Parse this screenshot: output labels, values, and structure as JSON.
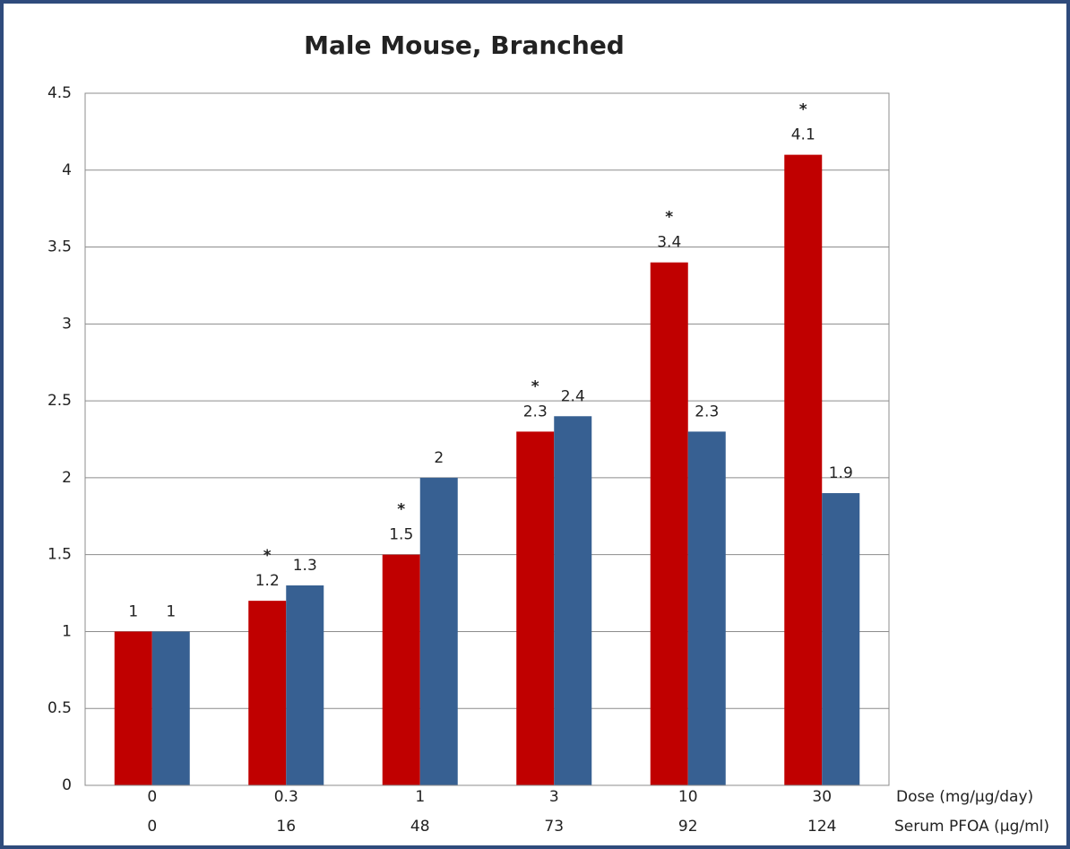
{
  "chart_data": {
    "type": "bar",
    "title": "Male Mouse, Branched",
    "categories": [
      "0",
      "0.3",
      "1",
      "3",
      "10",
      "30"
    ],
    "categories_row2": [
      "0",
      "16",
      "48",
      "73",
      "92",
      "124"
    ],
    "row_labels": [
      "Dose (mg/µg/day)",
      "Serum PFOA (µg/ml)"
    ],
    "series": [
      {
        "color": "#c00000",
        "values": [
          1,
          1.2,
          1.5,
          2.3,
          3.4,
          4.1
        ],
        "flags": [
          null,
          "*",
          "*",
          "*",
          "*",
          "*"
        ]
      },
      {
        "color": "#376092",
        "values": [
          1,
          1.3,
          2,
          2.4,
          2.3,
          1.9
        ]
      }
    ],
    "ylim": [
      0,
      4.5
    ],
    "yticks": [
      0,
      0.5,
      1,
      1.5,
      2,
      2.5,
      3,
      3.5,
      4,
      4.5
    ],
    "grid": true
  }
}
